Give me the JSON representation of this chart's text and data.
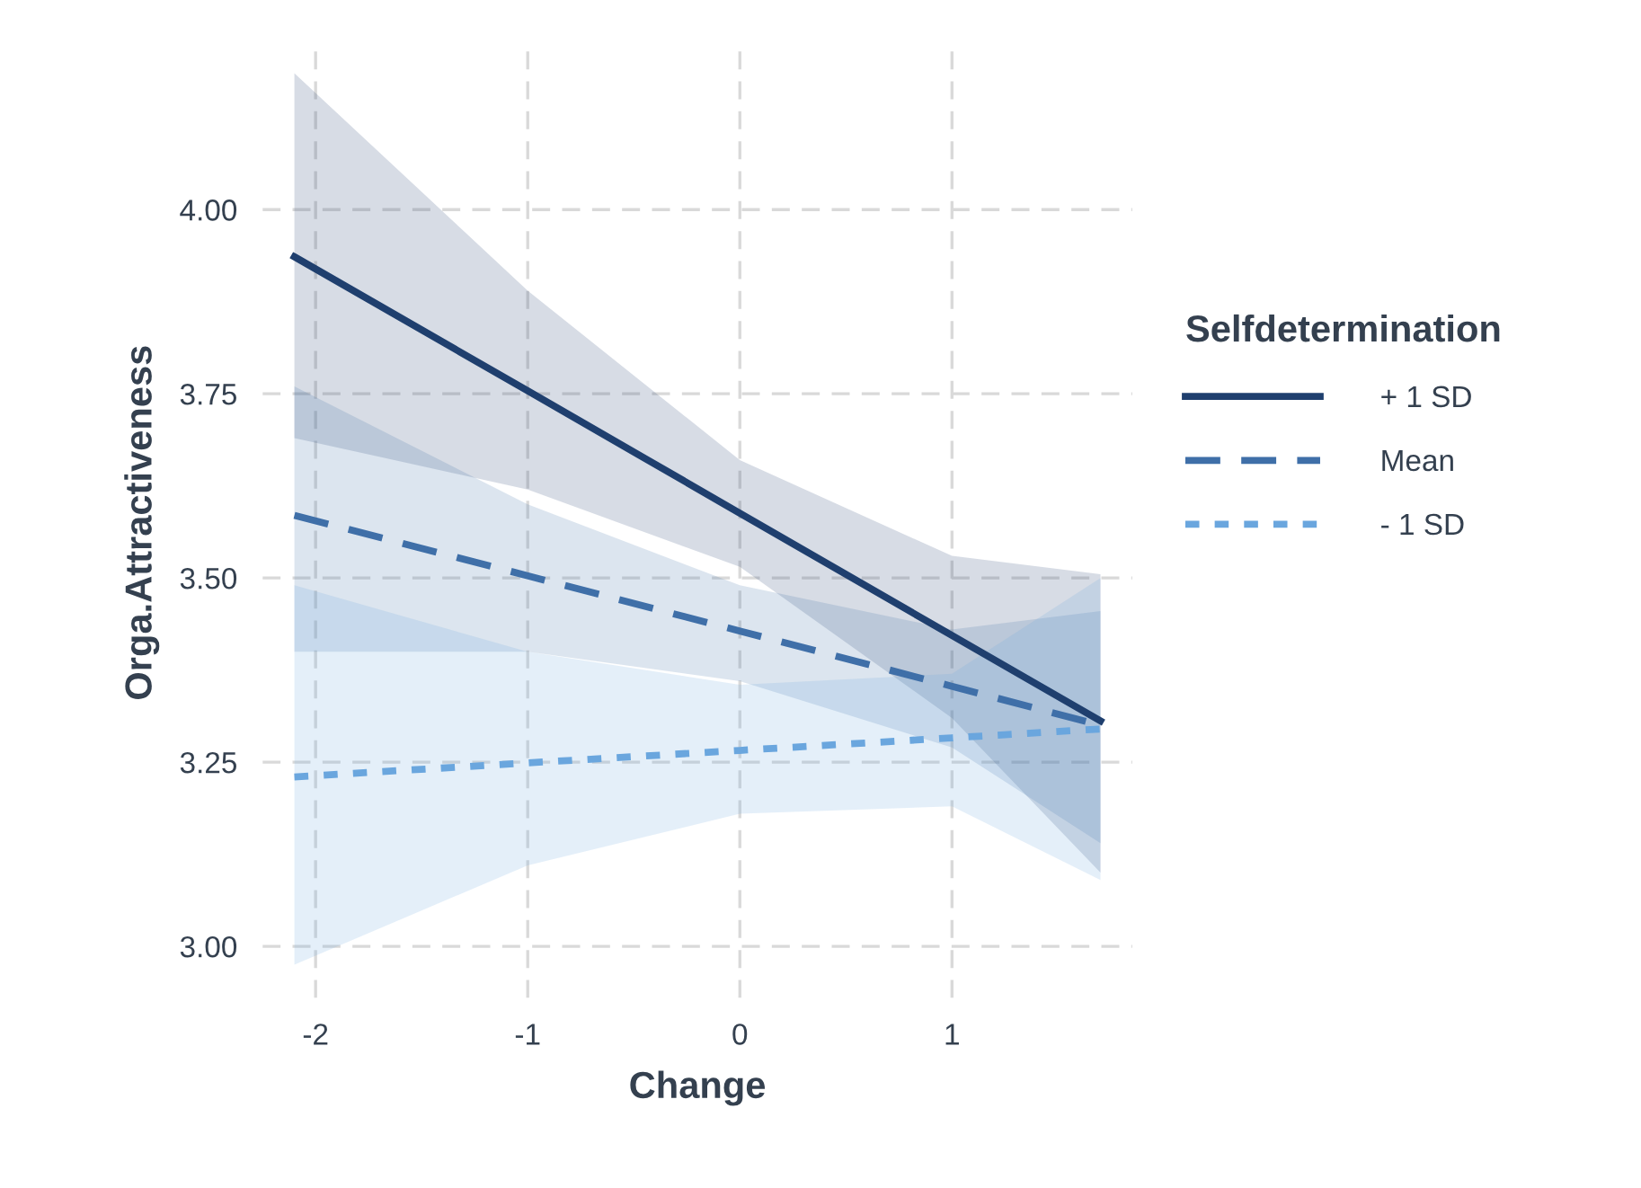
{
  "chart_data": {
    "type": "line",
    "xlabel": "Change",
    "ylabel": "Orga.Attractiveness",
    "legend_title": "Selfdetermination",
    "x": [
      -2.1,
      -1,
      0,
      1,
      1.7
    ],
    "series": [
      {
        "name": "+ 1 SD",
        "color": "#1f3f6e",
        "line_style": "solid",
        "values": [
          3.936,
          3.754,
          3.588,
          3.422,
          3.306
        ],
        "upper": [
          4.185,
          3.89,
          3.66,
          3.53,
          3.505
        ],
        "lower": [
          3.69,
          3.62,
          3.515,
          3.31,
          3.1
        ]
      },
      {
        "name": "Mean",
        "color": "#3f6fa8",
        "line_style": "dashed",
        "values": [
          3.585,
          3.503,
          3.428,
          3.353,
          3.3
        ],
        "upper": [
          3.76,
          3.6,
          3.49,
          3.43,
          3.455
        ],
        "lower": [
          3.4,
          3.4,
          3.36,
          3.27,
          3.14
        ]
      },
      {
        "name": "- 1 SD",
        "color": "#6aa6de",
        "line_style": "dotted",
        "values": [
          3.23,
          3.249,
          3.266,
          3.283,
          3.295
        ],
        "upper": [
          3.49,
          3.4,
          3.355,
          3.37,
          3.5
        ],
        "lower": [
          2.975,
          3.11,
          3.18,
          3.19,
          3.09
        ]
      }
    ],
    "xlim": [
      -2.25,
      1.85
    ],
    "ylim": [
      2.93,
      4.22
    ],
    "xticks": [
      -2,
      -1,
      0,
      1
    ],
    "yticks": [
      {
        "value": 3.0,
        "label": "3.00"
      },
      {
        "value": 3.25,
        "label": "3.25"
      },
      {
        "value": 3.5,
        "label": "3.50"
      },
      {
        "value": 3.75,
        "label": "3.75"
      },
      {
        "value": 4.0,
        "label": "4.00"
      }
    ],
    "grid": true,
    "legend": "right"
  }
}
